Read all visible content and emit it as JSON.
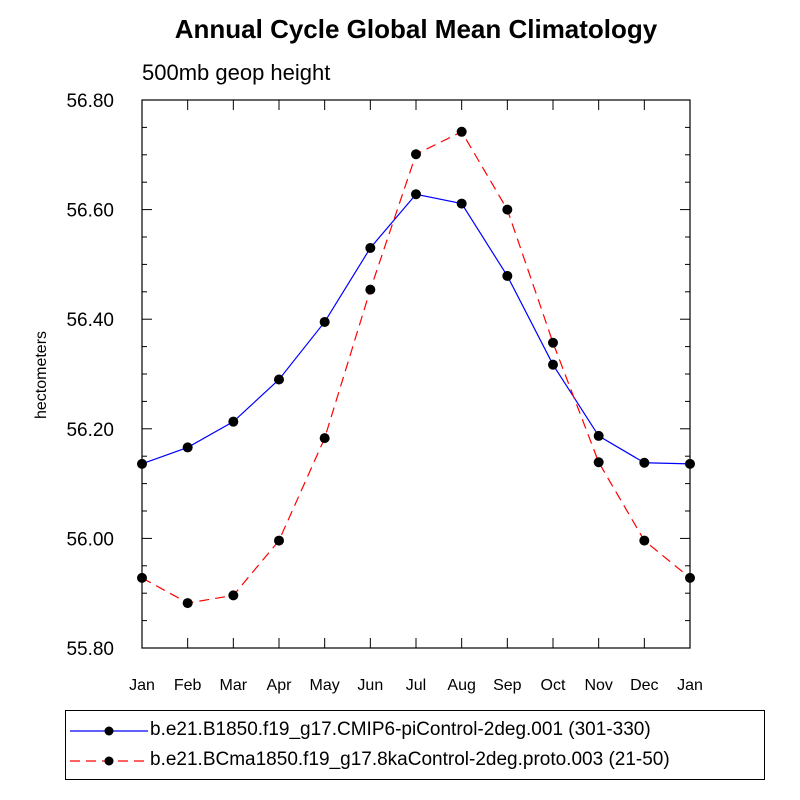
{
  "chart_data": {
    "type": "line",
    "title": "Annual Cycle Global Mean Climatology",
    "subtitle": "500mb geop height",
    "xlabel": "",
    "ylabel": "hectometers",
    "categories": [
      "Jan",
      "Feb",
      "Mar",
      "Apr",
      "May",
      "Jun",
      "Jul",
      "Aug",
      "Sep",
      "Oct",
      "Nov",
      "Dec",
      "Jan"
    ],
    "ylim": [
      55.8,
      56.8
    ],
    "yticks": [
      "55.80",
      "56.00",
      "56.20",
      "56.40",
      "56.60",
      "56.80"
    ],
    "grid": false,
    "legend_position": "bottom",
    "series": [
      {
        "name": "b.e21.B1850.f19_g17.CMIP6-piControl-2deg.001 (301-330)",
        "color": "#0000ff",
        "dash": "solid",
        "marker": "filled-circle",
        "values": [
          56.136,
          56.166,
          56.213,
          56.29,
          56.395,
          56.53,
          56.628,
          56.611,
          56.479,
          56.317,
          56.187,
          56.138,
          56.136
        ]
      },
      {
        "name": "b.e21.BCma1850.f19_g17.8kaControl-2deg.proto.003 (21-50)",
        "color": "#ff0000",
        "dash": "dashed",
        "marker": "filled-circle",
        "values": [
          55.928,
          55.882,
          55.896,
          55.996,
          56.183,
          56.454,
          56.701,
          56.742,
          56.6,
          56.357,
          56.139,
          55.996,
          55.928
        ]
      }
    ]
  }
}
